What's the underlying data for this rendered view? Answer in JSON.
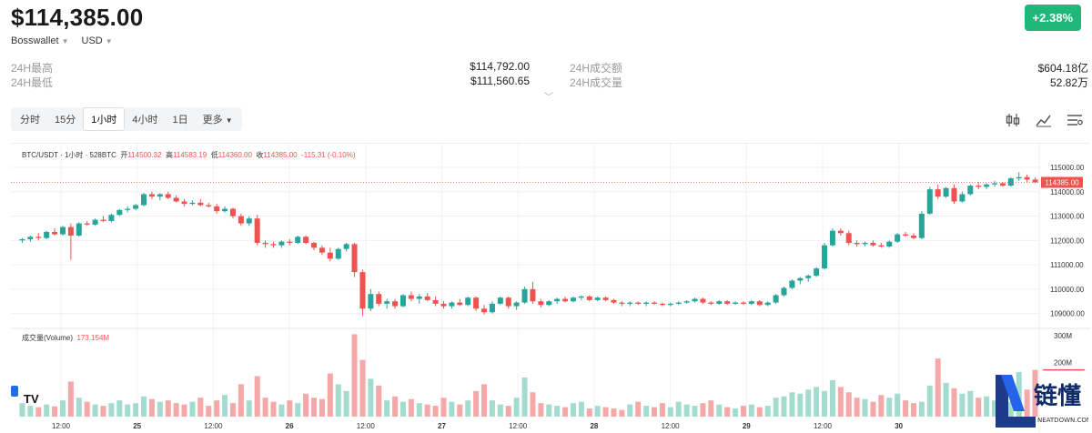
{
  "header": {
    "price": "$114,385.00",
    "wallet": "Bosswallet",
    "currency": "USD",
    "change": "+2.38%"
  },
  "stats": {
    "high_label": "24H最高",
    "high_value": "$114,792.00",
    "low_label": "24H最低",
    "low_value": "$111,560.65",
    "turnover_label": "24H成交额",
    "turnover_value": "$604.18亿",
    "volume_label": "24H成交量",
    "volume_value": "52.82万"
  },
  "tabs": [
    "分时",
    "15分",
    "1小时",
    "4小时",
    "1日",
    "更多"
  ],
  "active_tab": "1小时",
  "tools": [
    "indicator-icon",
    "line-chart-icon",
    "settings-list-icon"
  ],
  "chart_data": {
    "type": "candlestick",
    "symbol_line": "BTC/USDT · 1小时 · 528BTC",
    "ohlc_text": {
      "open_label": "开",
      "open": "114500.32",
      "high_label": "高",
      "high": "114583.19",
      "low_label": "低",
      "low": "114360.00",
      "close_label": "收",
      "close": "114385.00",
      "change": "-115.31 (-0.10%)"
    },
    "y_ticks": [
      "115000.00",
      "114000.00",
      "113000.00",
      "112000.00",
      "111000.00",
      "110000.00",
      "109000.00"
    ],
    "last_price_label": "114385.00",
    "x_ticks": [
      "12:00",
      "25",
      "12:00",
      "26",
      "12:00",
      "27",
      "12:00",
      "28",
      "12:00",
      "29",
      "12:00",
      "30"
    ],
    "volume_label": "成交量(Volume)",
    "volume_value": "173.154M",
    "volume_ticks": [
      "300M",
      "200M"
    ],
    "colors": {
      "up": "#26a69a",
      "down": "#ef5350"
    },
    "candles": [
      [
        112000,
        112100,
        111900,
        112050
      ],
      [
        112050,
        112200,
        111950,
        112150
      ],
      [
        112150,
        112300,
        112000,
        112100
      ],
      [
        112100,
        112400,
        112050,
        112350
      ],
      [
        112350,
        112500,
        112200,
        112250
      ],
      [
        112250,
        112600,
        112200,
        112550
      ],
      [
        112550,
        112700,
        111200,
        112200
      ],
      [
        112200,
        112750,
        112150,
        112700
      ],
      [
        112700,
        112800,
        112600,
        112650
      ],
      [
        112650,
        112900,
        112600,
        112850
      ],
      [
        112850,
        113000,
        112750,
        112800
      ],
      [
        112800,
        113100,
        112750,
        113050
      ],
      [
        113050,
        113300,
        113000,
        113250
      ],
      [
        113250,
        113400,
        113150,
        113300
      ],
      [
        113300,
        113500,
        113250,
        113450
      ],
      [
        113450,
        113950,
        113400,
        113900
      ],
      [
        113900,
        114000,
        113700,
        113800
      ],
      [
        113800,
        113950,
        113650,
        113900
      ],
      [
        113900,
        114000,
        113700,
        113750
      ],
      [
        113750,
        113850,
        113550,
        113600
      ],
      [
        113600,
        113700,
        113400,
        113500
      ],
      [
        113500,
        113650,
        113450,
        113550
      ],
      [
        113550,
        113700,
        113400,
        113450
      ],
      [
        113450,
        113550,
        113350,
        113400
      ],
      [
        113400,
        113500,
        113100,
        113200
      ],
      [
        113200,
        113400,
        113150,
        113300
      ],
      [
        113300,
        113350,
        112900,
        113000
      ],
      [
        113000,
        113100,
        112600,
        112700
      ],
      [
        112700,
        113000,
        112600,
        112900
      ],
      [
        112900,
        113050,
        111800,
        111900
      ],
      [
        111900,
        112000,
        111700,
        111850
      ],
      [
        111850,
        111950,
        111700,
        111800
      ],
      [
        111800,
        112000,
        111700,
        111950
      ],
      [
        111950,
        112050,
        111800,
        111900
      ],
      [
        111900,
        112200,
        111850,
        112150
      ],
      [
        112150,
        112200,
        111850,
        111900
      ],
      [
        111900,
        111950,
        111600,
        111700
      ],
      [
        111700,
        111800,
        111400,
        111500
      ],
      [
        111500,
        111700,
        111150,
        111250
      ],
      [
        111250,
        111700,
        111200,
        111650
      ],
      [
        111650,
        111900,
        111550,
        111850
      ],
      [
        111850,
        111900,
        110500,
        110700
      ],
      [
        110700,
        110800,
        108900,
        109200
      ],
      [
        109200,
        110000,
        109100,
        109800
      ],
      [
        109800,
        109900,
        109300,
        109400
      ],
      [
        109400,
        109600,
        109200,
        109500
      ],
      [
        109500,
        109600,
        109200,
        109300
      ],
      [
        109300,
        109800,
        109250,
        109750
      ],
      [
        109750,
        109900,
        109500,
        109600
      ],
      [
        109600,
        109800,
        109400,
        109700
      ],
      [
        109700,
        109850,
        109500,
        109550
      ],
      [
        109550,
        109700,
        109300,
        109400
      ],
      [
        109400,
        109500,
        109200,
        109300
      ],
      [
        109300,
        109500,
        109200,
        109450
      ],
      [
        109450,
        109600,
        109300,
        109350
      ],
      [
        109350,
        109700,
        109300,
        109650
      ],
      [
        109650,
        109700,
        109100,
        109200
      ],
      [
        109200,
        109350,
        108950,
        109050
      ],
      [
        109050,
        109500,
        109000,
        109400
      ],
      [
        109400,
        109700,
        109350,
        109650
      ],
      [
        109650,
        109700,
        109200,
        109300
      ],
      [
        109300,
        109500,
        109150,
        109450
      ],
      [
        109450,
        110100,
        109400,
        110000
      ],
      [
        110000,
        110300,
        109400,
        109500
      ],
      [
        109500,
        109600,
        109250,
        109350
      ],
      [
        109350,
        109550,
        109300,
        109500
      ],
      [
        109500,
        109650,
        109400,
        109600
      ],
      [
        109600,
        109700,
        109450,
        109500
      ],
      [
        109500,
        109700,
        109450,
        109650
      ],
      [
        109650,
        109750,
        109550,
        109700
      ],
      [
        109700,
        109750,
        109500,
        109550
      ],
      [
        109550,
        109700,
        109500,
        109650
      ],
      [
        109650,
        109700,
        109500,
        109550
      ],
      [
        109550,
        109600,
        109400,
        109450
      ],
      [
        109450,
        109500,
        109300,
        109400
      ],
      [
        109400,
        109500,
        109300,
        109450
      ],
      [
        109450,
        109500,
        109350,
        109400
      ],
      [
        109400,
        109500,
        109300,
        109450
      ],
      [
        109450,
        109500,
        109350,
        109400
      ],
      [
        109400,
        109450,
        109300,
        109350
      ],
      [
        109350,
        109450,
        109300,
        109400
      ],
      [
        109400,
        109500,
        109350,
        109450
      ],
      [
        109450,
        109550,
        109400,
        109500
      ],
      [
        109500,
        109650,
        109450,
        109600
      ],
      [
        109600,
        109650,
        109400,
        109450
      ],
      [
        109450,
        109500,
        109350,
        109400
      ],
      [
        109400,
        109550,
        109350,
        109500
      ],
      [
        109500,
        109550,
        109350,
        109400
      ],
      [
        109400,
        109500,
        109350,
        109450
      ],
      [
        109450,
        109500,
        109350,
        109400
      ],
      [
        109400,
        109550,
        109350,
        109500
      ],
      [
        109500,
        109550,
        109300,
        109350
      ],
      [
        109350,
        109500,
        109300,
        109450
      ],
      [
        109450,
        109800,
        109400,
        109750
      ],
      [
        109750,
        110100,
        109700,
        110050
      ],
      [
        110050,
        110400,
        110000,
        110350
      ],
      [
        110350,
        110500,
        110200,
        110450
      ],
      [
        110450,
        110600,
        110300,
        110550
      ],
      [
        110550,
        110900,
        110500,
        110850
      ],
      [
        110850,
        111900,
        110800,
        111800
      ],
      [
        111800,
        112500,
        111750,
        112400
      ],
      [
        112400,
        112500,
        112200,
        112300
      ],
      [
        112300,
        112400,
        111800,
        111900
      ],
      [
        111900,
        112000,
        111750,
        111850
      ],
      [
        111850,
        111950,
        111750,
        111900
      ],
      [
        111900,
        112000,
        111750,
        111800
      ],
      [
        111800,
        111900,
        111700,
        111750
      ],
      [
        111750,
        112000,
        111700,
        111950
      ],
      [
        111950,
        112300,
        111900,
        112250
      ],
      [
        112250,
        112350,
        112150,
        112200
      ],
      [
        112200,
        112300,
        112050,
        112100
      ],
      [
        112100,
        113200,
        112050,
        113100
      ],
      [
        113100,
        114200,
        113050,
        114100
      ],
      [
        114100,
        114300,
        113700,
        113800
      ],
      [
        113800,
        114200,
        113750,
        114150
      ],
      [
        114150,
        114300,
        113500,
        113600
      ],
      [
        113600,
        114000,
        113550,
        113900
      ],
      [
        113900,
        114300,
        113850,
        114250
      ],
      [
        114250,
        114400,
        114100,
        114200
      ],
      [
        114200,
        114350,
        114100,
        114300
      ],
      [
        114300,
        114450,
        114200,
        114350
      ],
      [
        114350,
        114400,
        114200,
        114250
      ],
      [
        114250,
        114600,
        114200,
        114550
      ],
      [
        114550,
        114800,
        114450,
        114600
      ],
      [
        114600,
        114700,
        114400,
        114500
      ],
      [
        114500,
        114583,
        114360,
        114385
      ]
    ],
    "volumes_m": [
      50,
      40,
      35,
      45,
      38,
      60,
      130,
      70,
      55,
      45,
      40,
      50,
      60,
      45,
      50,
      75,
      65,
      55,
      60,
      50,
      45,
      55,
      70,
      40,
      60,
      80,
      50,
      120,
      60,
      150,
      70,
      55,
      45,
      60,
      50,
      85,
      70,
      65,
      160,
      120,
      95,
      305,
      210,
      140,
      115,
      60,
      75,
      55,
      65,
      50,
      45,
      40,
      70,
      55,
      45,
      60,
      95,
      120,
      60,
      45,
      40,
      70,
      145,
      90,
      50,
      45,
      40,
      35,
      50,
      55,
      30,
      40,
      35,
      30,
      25,
      45,
      55,
      40,
      35,
      50,
      35,
      55,
      45,
      40,
      50,
      60,
      45,
      35,
      30,
      40,
      45,
      35,
      40,
      70,
      75,
      90,
      85,
      100,
      110,
      95,
      135,
      110,
      90,
      70,
      65,
      55,
      80,
      70,
      85,
      60,
      50,
      55,
      115,
      215,
      125,
      105,
      85,
      95,
      70,
      75,
      60,
      65,
      55,
      165,
      100,
      173
    ]
  }
}
